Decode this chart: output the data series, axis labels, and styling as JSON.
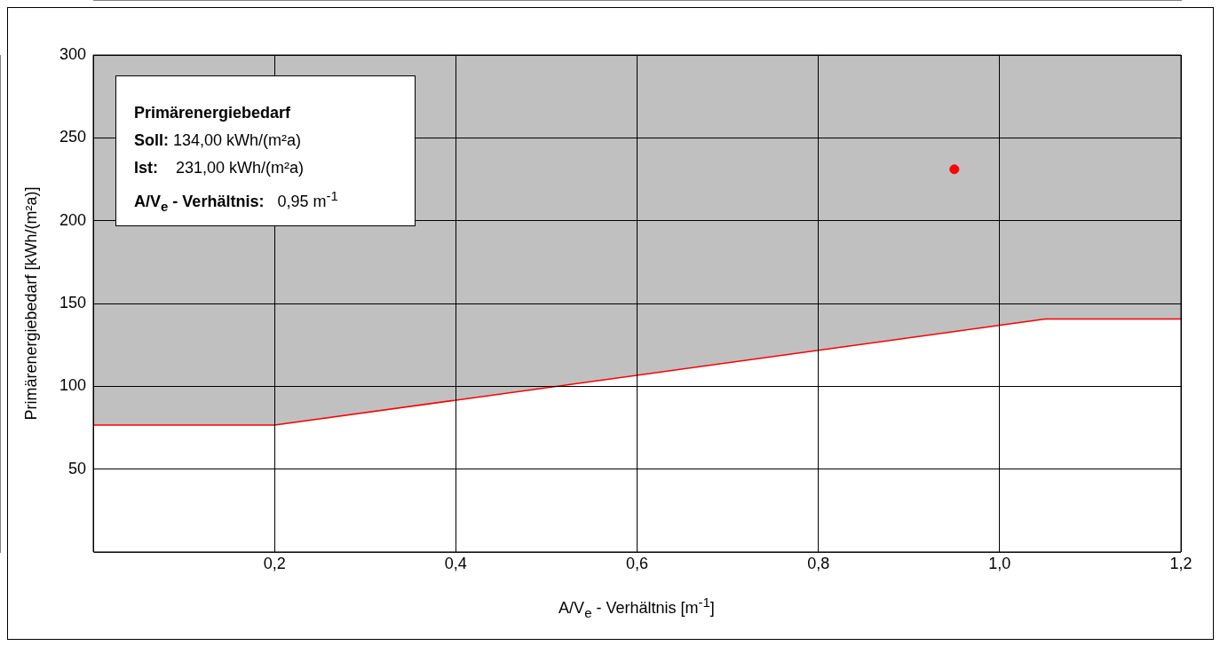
{
  "chart_data": {
    "type": "line",
    "xlabel": "A/V$_{e}$ - Verhältnis [m$^{-1}$]",
    "ylabel": "Primärenergiebedarf  [kWh/(m²a)]",
    "annotations": [
      "Primärenergiebedarf",
      "Soll: 134,00 kWh/(m²a)",
      "Ist:    231,00 kWh/(m²a)",
      "A/V$_{e}$ - Verhältnis:   0,95 m$^{-1}$"
    ],
    "xlim": [
      0,
      1.2
    ],
    "ylim": [
      0,
      300
    ],
    "xticks": [
      {
        "value": 0,
        "label": null
      },
      {
        "value": 0.2,
        "label": "0,2"
      },
      {
        "value": 0.4,
        "label": "0,4"
      },
      {
        "value": 0.6,
        "label": "0,6"
      },
      {
        "value": 0.8,
        "label": "0,8"
      },
      {
        "value": 1.0,
        "label": "1,0"
      },
      {
        "value": 1.2,
        "label": "1,2"
      }
    ],
    "yticks": [
      {
        "value": 0,
        "label": null
      },
      50,
      100,
      150,
      200,
      250,
      300
    ],
    "grid": true,
    "legend": false,
    "marker": "circle",
    "series": [
      {
        "color": "#ff0000",
        "marker": "none",
        "x": [
          0,
          0.2,
          1.05,
          1.2
        ],
        "values": [
          77,
          77,
          141,
          141
        ],
        "lower": [
          77,
          77,
          141,
          141
        ],
        "upper": [
          300,
          300,
          300,
          300
        ]
      },
      {
        "type": "scatter",
        "color": "#ff0000",
        "x": [
          0.95
        ],
        "values": [
          231
        ]
      }
    ]
  }
}
